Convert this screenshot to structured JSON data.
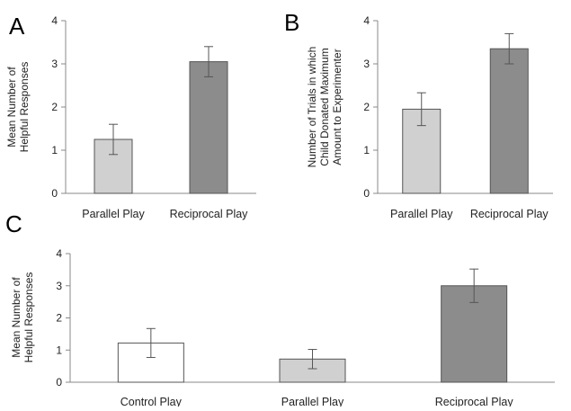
{
  "colors": {
    "light_gray": "#d0d0d0",
    "dark_gray": "#8c8c8c",
    "white": "#ffffff",
    "bar_border": "#555555",
    "axis": "#888888",
    "error_bar": "#555555"
  },
  "chart_data": [
    {
      "panel": "A",
      "type": "bar",
      "title": "",
      "xlabel": "",
      "ylabel_lines": [
        "Mean Number of",
        "Helpful Responses"
      ],
      "ylim": [
        0,
        4
      ],
      "yticks": [
        "0",
        "1",
        "2",
        "3",
        "4"
      ],
      "categories": [
        "Parallel Play",
        "Reciprocal Play"
      ],
      "values": [
        1.25,
        3.05
      ],
      "errors": [
        0.35,
        0.35
      ],
      "bar_colors": [
        "light_gray",
        "dark_gray"
      ],
      "grid": false
    },
    {
      "panel": "B",
      "type": "bar",
      "title": "",
      "xlabel": "",
      "ylabel_lines": [
        "Number of Trials in which",
        "Child Donated Maximum",
        "Amount to Experimenter"
      ],
      "ylim": [
        0,
        4
      ],
      "yticks": [
        "0",
        "1",
        "2",
        "3",
        "4"
      ],
      "categories": [
        "Parallel Play",
        "Reciprocal Play"
      ],
      "values": [
        1.95,
        3.35
      ],
      "errors": [
        0.38,
        0.35
      ],
      "bar_colors": [
        "light_gray",
        "dark_gray"
      ],
      "grid": false
    },
    {
      "panel": "C",
      "type": "bar",
      "title": "",
      "xlabel": "",
      "ylabel_lines": [
        "Mean Number of",
        "Helpful Responses"
      ],
      "ylim": [
        0,
        4
      ],
      "yticks": [
        "0",
        "1",
        "2",
        "3",
        "4"
      ],
      "categories": [
        "Control Play",
        "Parallel Play",
        "Reciprocal Play"
      ],
      "values": [
        1.22,
        0.72,
        3.0
      ],
      "errors": [
        0.45,
        0.3,
        0.52
      ],
      "bar_colors": [
        "white",
        "light_gray",
        "dark_gray"
      ],
      "grid": false
    }
  ]
}
